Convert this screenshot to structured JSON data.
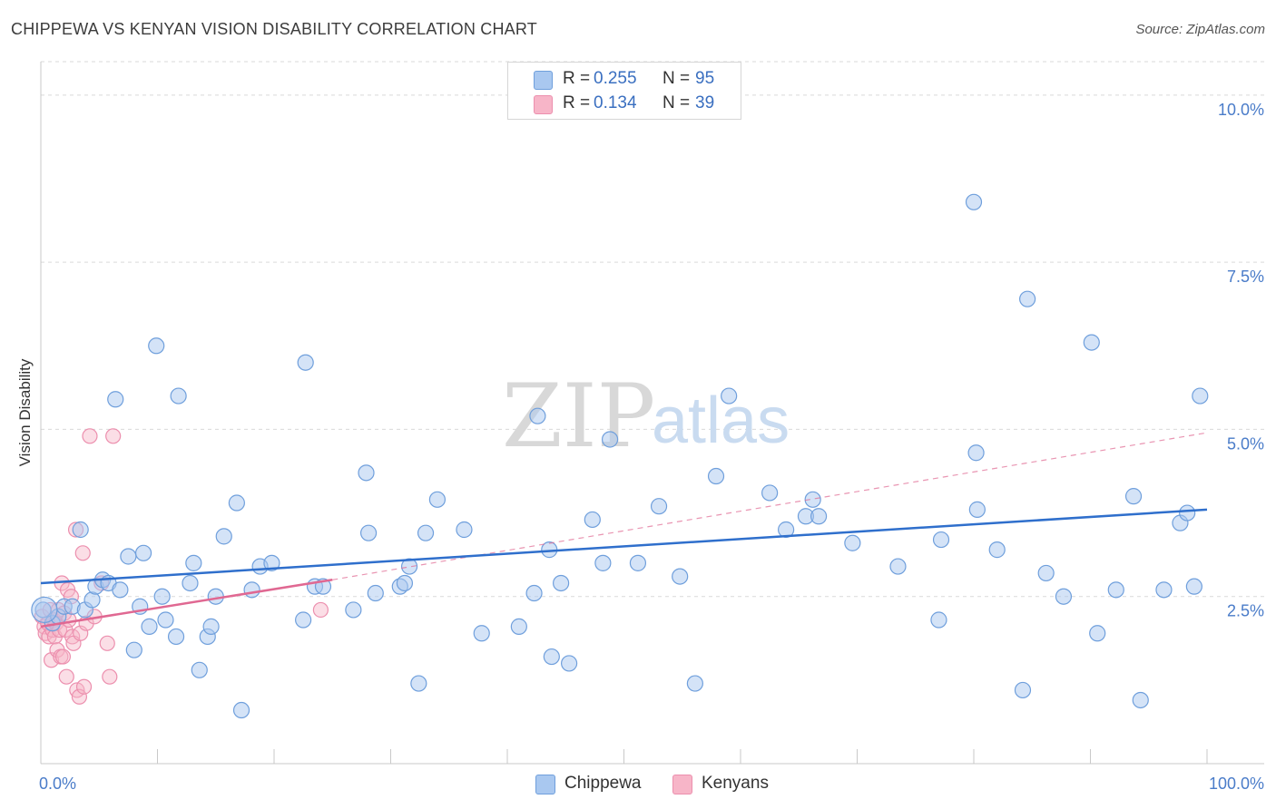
{
  "header": {
    "title": "CHIPPEWA VS KENYAN VISION DISABILITY CORRELATION CHART",
    "source": "Source: ZipAtlas.com"
  },
  "watermark": {
    "zip": "ZIP",
    "atlas": "atlas"
  },
  "legend": {
    "rows": [
      {
        "r_label": "R =",
        "r_value": "0.255",
        "n_label": "N =",
        "n_value": "95",
        "color": "#a9c8f0"
      },
      {
        "r_label": "R =",
        "r_value": "0.134",
        "n_label": "N =",
        "n_value": "39",
        "color": "#f7b5c8"
      }
    ]
  },
  "bottom_legend": [
    "Chippewa",
    "Kenyans"
  ],
  "colors": {
    "chippewa_fill": "#a9c8f0",
    "chippewa_stroke": "#6f9fdc",
    "chippewa_line": "#2f6fcc",
    "kenyans_fill": "#f7b5c8",
    "kenyans_stroke": "#ec8fae",
    "kenyans_line": "#e06892",
    "grid": "#d9d9d9",
    "axis_text": "#4a7cc9"
  },
  "chart_data": {
    "type": "scatter",
    "title": "CHIPPEWA VS KENYAN VISION DISABILITY CORRELATION CHART",
    "xlabel": "",
    "ylabel": "Vision Disability",
    "xlim": [
      0,
      100
    ],
    "ylim": [
      0,
      10.5
    ],
    "x_tick_labels": [
      "0.0%",
      "100.0%"
    ],
    "y_ticks": [
      2.5,
      5.0,
      7.5,
      10.0
    ],
    "y_tick_labels": [
      "2.5%",
      "5.0%",
      "7.5%",
      "10.0%"
    ],
    "grid": true,
    "legend_position": "top-center",
    "series": [
      {
        "name": "Chippewa",
        "points": [
          [
            0.2,
            2.3
          ],
          [
            1.0,
            2.1
          ],
          [
            1.5,
            2.2
          ],
          [
            2.0,
            2.35
          ],
          [
            2.7,
            2.35
          ],
          [
            3.4,
            3.5
          ],
          [
            3.8,
            2.3
          ],
          [
            4.4,
            2.45
          ],
          [
            4.7,
            2.65
          ],
          [
            5.3,
            2.75
          ],
          [
            5.8,
            2.7
          ],
          [
            6.4,
            5.45
          ],
          [
            6.8,
            2.6
          ],
          [
            7.5,
            3.1
          ],
          [
            8.0,
            1.7
          ],
          [
            8.5,
            2.35
          ],
          [
            8.8,
            3.15
          ],
          [
            9.3,
            2.05
          ],
          [
            9.9,
            6.25
          ],
          [
            10.4,
            2.5
          ],
          [
            10.7,
            2.15
          ],
          [
            11.6,
            1.9
          ],
          [
            11.8,
            5.5
          ],
          [
            12.8,
            2.7
          ],
          [
            13.1,
            3.0
          ],
          [
            13.6,
            1.4
          ],
          [
            14.3,
            1.9
          ],
          [
            14.6,
            2.05
          ],
          [
            15.0,
            2.5
          ],
          [
            15.7,
            3.4
          ],
          [
            16.8,
            3.9
          ],
          [
            17.2,
            0.8
          ],
          [
            18.1,
            2.6
          ],
          [
            18.8,
            2.95
          ],
          [
            19.8,
            3.0
          ],
          [
            22.5,
            2.15
          ],
          [
            22.7,
            6.0
          ],
          [
            23.5,
            2.65
          ],
          [
            24.2,
            2.65
          ],
          [
            26.8,
            2.3
          ],
          [
            27.9,
            4.35
          ],
          [
            28.1,
            3.45
          ],
          [
            28.7,
            2.55
          ],
          [
            30.8,
            2.65
          ],
          [
            31.2,
            2.7
          ],
          [
            31.6,
            2.95
          ],
          [
            32.4,
            1.2
          ],
          [
            33.0,
            3.45
          ],
          [
            34.0,
            3.95
          ],
          [
            36.3,
            3.5
          ],
          [
            37.8,
            1.95
          ],
          [
            41.0,
            2.05
          ],
          [
            42.3,
            2.55
          ],
          [
            42.6,
            5.2
          ],
          [
            43.6,
            3.2
          ],
          [
            43.8,
            1.6
          ],
          [
            44.6,
            2.7
          ],
          [
            45.3,
            1.5
          ],
          [
            47.3,
            3.65
          ],
          [
            48.2,
            3.0
          ],
          [
            48.8,
            4.85
          ],
          [
            51.2,
            3.0
          ],
          [
            53.0,
            3.85
          ],
          [
            54.8,
            2.8
          ],
          [
            56.1,
            1.2
          ],
          [
            57.9,
            4.3
          ],
          [
            59.0,
            5.5
          ],
          [
            62.5,
            4.05
          ],
          [
            63.9,
            3.5
          ],
          [
            65.6,
            3.7
          ],
          [
            66.2,
            3.95
          ],
          [
            66.7,
            3.7
          ],
          [
            69.6,
            3.3
          ],
          [
            73.5,
            2.95
          ],
          [
            77.0,
            2.15
          ],
          [
            77.2,
            3.35
          ],
          [
            80.0,
            8.4
          ],
          [
            80.2,
            4.65
          ],
          [
            80.3,
            3.8
          ],
          [
            82.0,
            3.2
          ],
          [
            84.2,
            1.1
          ],
          [
            84.6,
            6.95
          ],
          [
            86.2,
            2.85
          ],
          [
            87.7,
            2.5
          ],
          [
            90.1,
            6.3
          ],
          [
            90.6,
            1.95
          ],
          [
            92.2,
            2.6
          ],
          [
            93.7,
            4.0
          ],
          [
            94.3,
            0.95
          ],
          [
            96.3,
            2.6
          ],
          [
            97.7,
            3.6
          ],
          [
            98.3,
            3.75
          ],
          [
            98.9,
            2.65
          ],
          [
            99.4,
            5.5
          ],
          [
            0.3,
            2.3
          ]
        ],
        "trend": {
          "x": [
            0,
            100
          ],
          "y": [
            2.7,
            3.8
          ]
        }
      },
      {
        "name": "Kenyans",
        "points": [
          [
            0.1,
            2.2
          ],
          [
            0.3,
            2.05
          ],
          [
            0.4,
            1.95
          ],
          [
            0.6,
            2.1
          ],
          [
            0.7,
            1.9
          ],
          [
            0.8,
            2.3
          ],
          [
            0.9,
            1.55
          ],
          [
            1.0,
            2.0
          ],
          [
            1.1,
            2.15
          ],
          [
            1.2,
            1.9
          ],
          [
            1.3,
            2.1
          ],
          [
            1.4,
            1.7
          ],
          [
            1.5,
            2.3
          ],
          [
            1.6,
            2.0
          ],
          [
            1.7,
            1.6
          ],
          [
            1.8,
            2.7
          ],
          [
            1.9,
            1.6
          ],
          [
            2.0,
            2.25
          ],
          [
            2.1,
            2.0
          ],
          [
            2.2,
            1.3
          ],
          [
            2.3,
            2.6
          ],
          [
            2.4,
            2.15
          ],
          [
            2.6,
            2.5
          ],
          [
            2.7,
            1.9
          ],
          [
            2.8,
            1.8
          ],
          [
            3.0,
            3.5
          ],
          [
            3.1,
            1.1
          ],
          [
            3.3,
            1.0
          ],
          [
            3.4,
            1.95
          ],
          [
            3.6,
            3.15
          ],
          [
            3.7,
            1.15
          ],
          [
            3.9,
            2.1
          ],
          [
            4.2,
            4.9
          ],
          [
            4.6,
            2.2
          ],
          [
            5.2,
            2.7
          ],
          [
            5.7,
            1.8
          ],
          [
            5.9,
            1.3
          ],
          [
            6.2,
            4.9
          ],
          [
            24.0,
            2.3
          ]
        ],
        "trend": {
          "x": [
            0,
            25
          ],
          "y": [
            2.05,
            2.75
          ]
        },
        "trend_extension": {
          "x": [
            25,
            100
          ],
          "y": [
            2.75,
            4.95
          ]
        }
      }
    ]
  }
}
